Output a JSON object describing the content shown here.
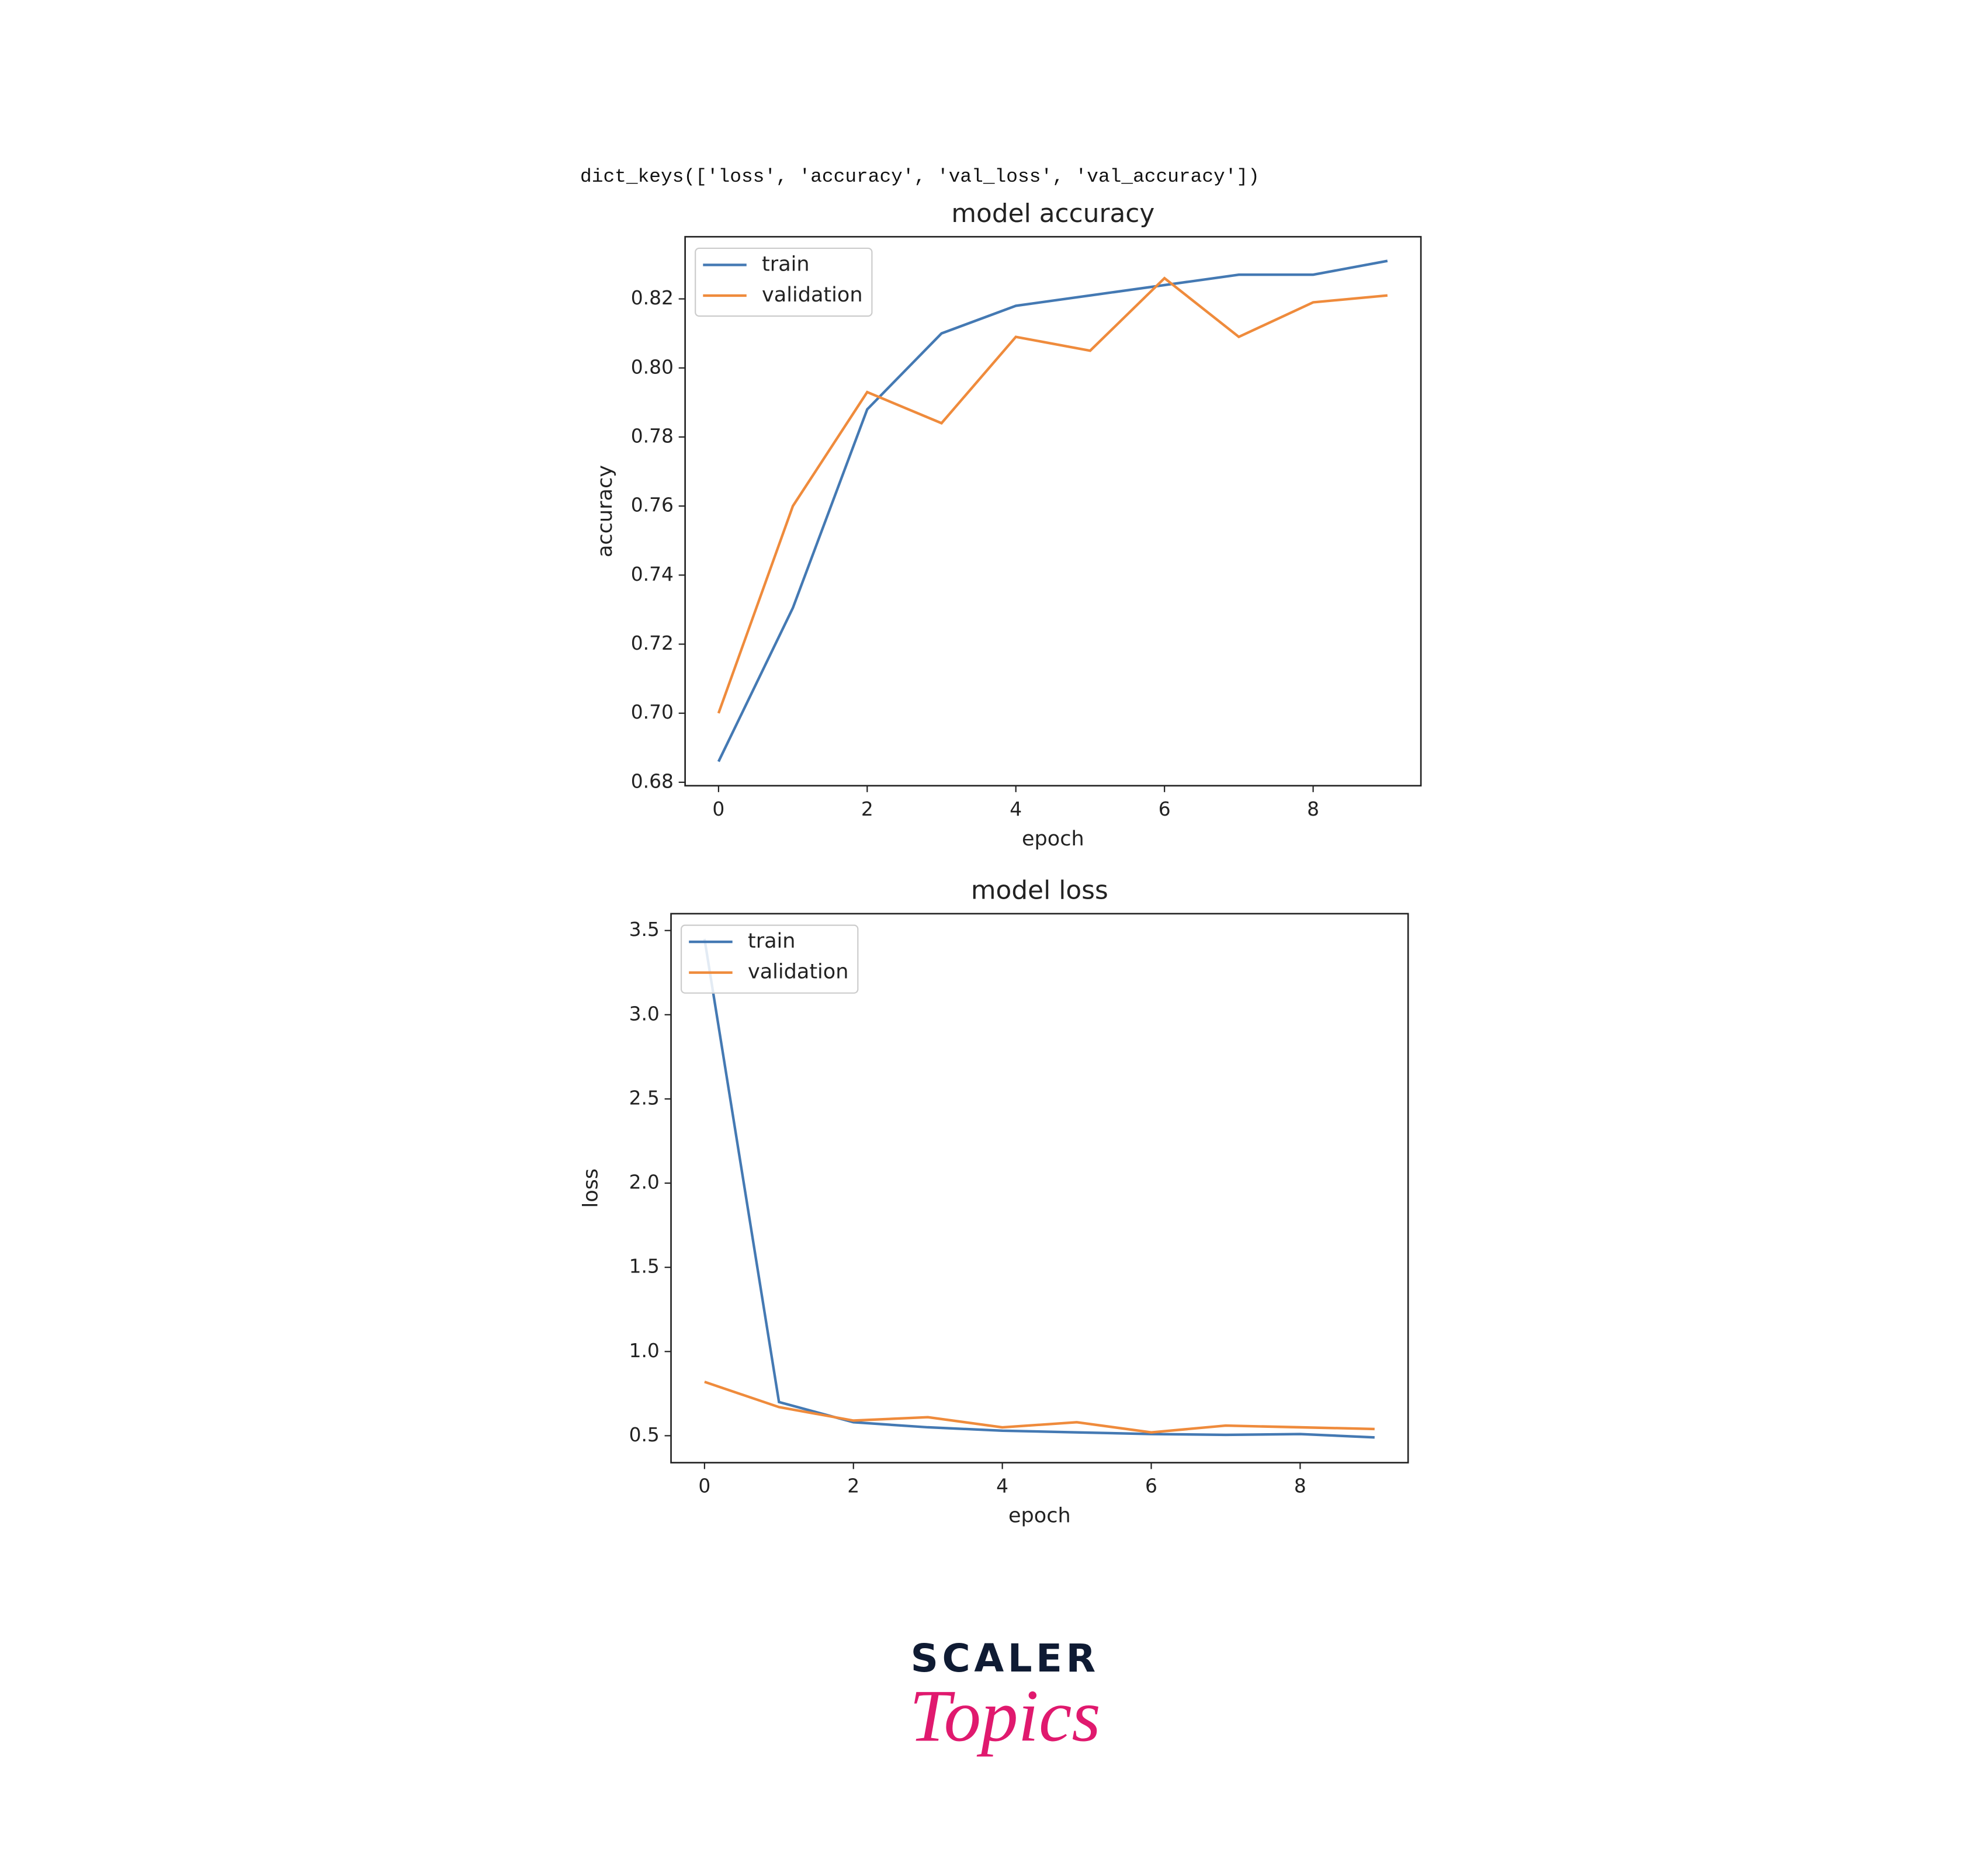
{
  "header_text": "dict_keys(['loss', 'accuracy', 'val_loss', 'val_accuracy'])",
  "chart_data": [
    {
      "type": "line",
      "title": "model accuracy",
      "x_label": "epoch",
      "y_label": "accuracy",
      "x": [
        0,
        1,
        2,
        3,
        4,
        5,
        6,
        7,
        8,
        9
      ],
      "series": [
        {
          "name": "train",
          "color": "#4479b3",
          "values": [
            0.686,
            0.7305,
            0.788,
            0.81,
            0.818,
            0.821,
            0.824,
            0.827,
            0.827,
            0.831
          ]
        },
        {
          "name": "validation",
          "color": "#ef8b3c",
          "values": [
            0.7,
            0.76,
            0.793,
            0.784,
            0.809,
            0.805,
            0.826,
            0.809,
            0.819,
            0.821
          ]
        }
      ],
      "xlim": [
        -0.45,
        9.45
      ],
      "ylim": [
        0.679,
        0.838
      ],
      "xticks": [
        0,
        2,
        4,
        6,
        8
      ],
      "yticks": [
        0.68,
        {
          "value": 0.7,
          "label": "0.70"
        },
        0.72,
        0.74,
        0.76,
        0.78,
        {
          "value": 0.8,
          "label": "0.80"
        },
        0.82
      ],
      "legend": "upper left",
      "grid": false
    },
    {
      "type": "line",
      "title": "model loss",
      "x_label": "epoch",
      "y_label": "loss",
      "x": [
        0,
        1,
        2,
        3,
        4,
        5,
        6,
        7,
        8,
        9
      ],
      "series": [
        {
          "name": "train",
          "color": "#4479b3",
          "values": [
            3.45,
            0.7,
            0.58,
            0.55,
            0.53,
            0.52,
            0.51,
            0.505,
            0.51,
            0.49
          ]
        },
        {
          "name": "validation",
          "color": "#ef8b3c",
          "values": [
            0.82,
            0.67,
            0.59,
            0.61,
            0.55,
            0.58,
            0.52,
            0.56,
            0.55,
            0.54
          ]
        }
      ],
      "xlim": [
        -0.45,
        9.45
      ],
      "ylim": [
        0.34,
        3.6
      ],
      "xticks": [
        0,
        2,
        4,
        6,
        8
      ],
      "yticks": [
        0.5,
        {
          "value": 1.0,
          "label": "1.0"
        },
        1.5,
        {
          "value": 2.0,
          "label": "2.0"
        },
        2.5,
        {
          "value": 3.0,
          "label": "3.0"
        },
        3.5
      ],
      "legend": "upper left",
      "grid": false
    }
  ],
  "logo": {
    "brand": "SCALER",
    "product": "Topics"
  }
}
